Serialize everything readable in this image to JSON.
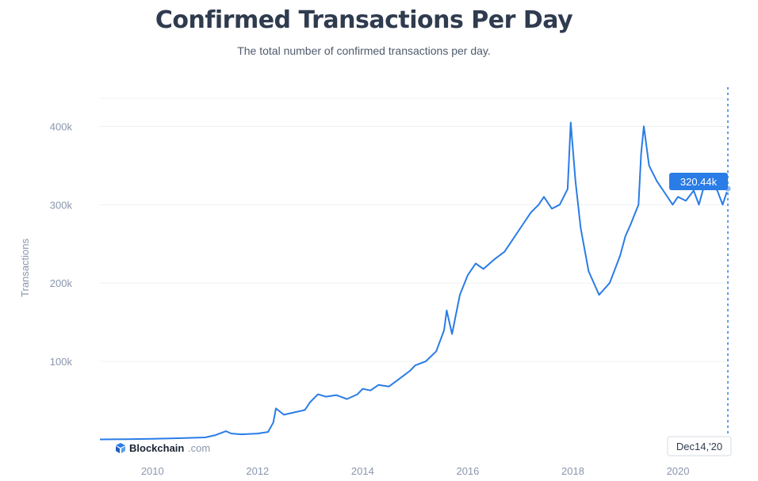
{
  "header": {
    "title": "Confirmed Transactions Per Day",
    "subtitle": "The total number of confirmed transactions per day."
  },
  "tooltip": {
    "value_label": "320.44k",
    "date_label": "Dec14,'20"
  },
  "watermark": {
    "brand": "Blockchain",
    "domain": ".com"
  },
  "colors": {
    "line": "#2a7ce6",
    "tooltip_bg": "#2a7ce6",
    "grid": "#eef0f4",
    "axis_text": "#8a96ad"
  },
  "chart_data": {
    "type": "line",
    "title": "Confirmed Transactions Per Day",
    "subtitle": "The total number of confirmed transactions per day.",
    "xlabel": "",
    "ylabel": "Transactions",
    "x_ticks": [
      "2010",
      "2012",
      "2014",
      "2016",
      "2018",
      "2020"
    ],
    "y_ticks": [
      "100k",
      "200k",
      "300k",
      "400k"
    ],
    "xlim": [
      2009.0,
      2020.95
    ],
    "ylim": [
      0,
      450000
    ],
    "grid": true,
    "series": [
      {
        "x": [
          2009.0,
          2009.5,
          2010.0,
          2010.5,
          2011.0,
          2011.2,
          2011.4,
          2011.5,
          2011.7,
          2012.0,
          2012.2,
          2012.3,
          2012.35,
          2012.5,
          2012.7,
          2012.9,
          2013.0,
          2013.15,
          2013.3,
          2013.5,
          2013.7,
          2013.9,
          2014.0,
          2014.15,
          2014.3,
          2014.5,
          2014.7,
          2014.9,
          2015.0,
          2015.2,
          2015.4,
          2015.55,
          2015.6,
          2015.7,
          2015.85,
          2016.0,
          2016.15,
          2016.3,
          2016.5,
          2016.7,
          2016.85,
          2017.0,
          2017.2,
          2017.35,
          2017.45,
          2017.6,
          2017.75,
          2017.9,
          2017.96,
          2018.05,
          2018.15,
          2018.3,
          2018.5,
          2018.7,
          2018.9,
          2019.0,
          2019.1,
          2019.25,
          2019.3,
          2019.35,
          2019.45,
          2019.6,
          2019.75,
          2019.9,
          2020.0,
          2020.15,
          2020.3,
          2020.4,
          2020.5,
          2020.6,
          2020.75,
          2020.85,
          2020.95
        ],
        "y": [
          500,
          800,
          1200,
          2000,
          3000,
          6000,
          11000,
          8000,
          7000,
          8000,
          10000,
          22000,
          40000,
          32000,
          35000,
          38000,
          48000,
          58000,
          55000,
          57000,
          52000,
          58000,
          65000,
          63000,
          70000,
          68000,
          78000,
          88000,
          95000,
          100000,
          113000,
          140000,
          165000,
          135000,
          185000,
          210000,
          225000,
          218000,
          230000,
          240000,
          255000,
          270000,
          290000,
          300000,
          310000,
          295000,
          300000,
          320000,
          405000,
          330000,
          270000,
          215000,
          185000,
          200000,
          235000,
          260000,
          275000,
          300000,
          365000,
          400000,
          350000,
          330000,
          315000,
          300000,
          310000,
          305000,
          318000,
          300000,
          325000,
          328000,
          318000,
          300000,
          320440
        ]
      }
    ],
    "annotations": [
      "320.44k",
      "Dec14,'20"
    ]
  }
}
